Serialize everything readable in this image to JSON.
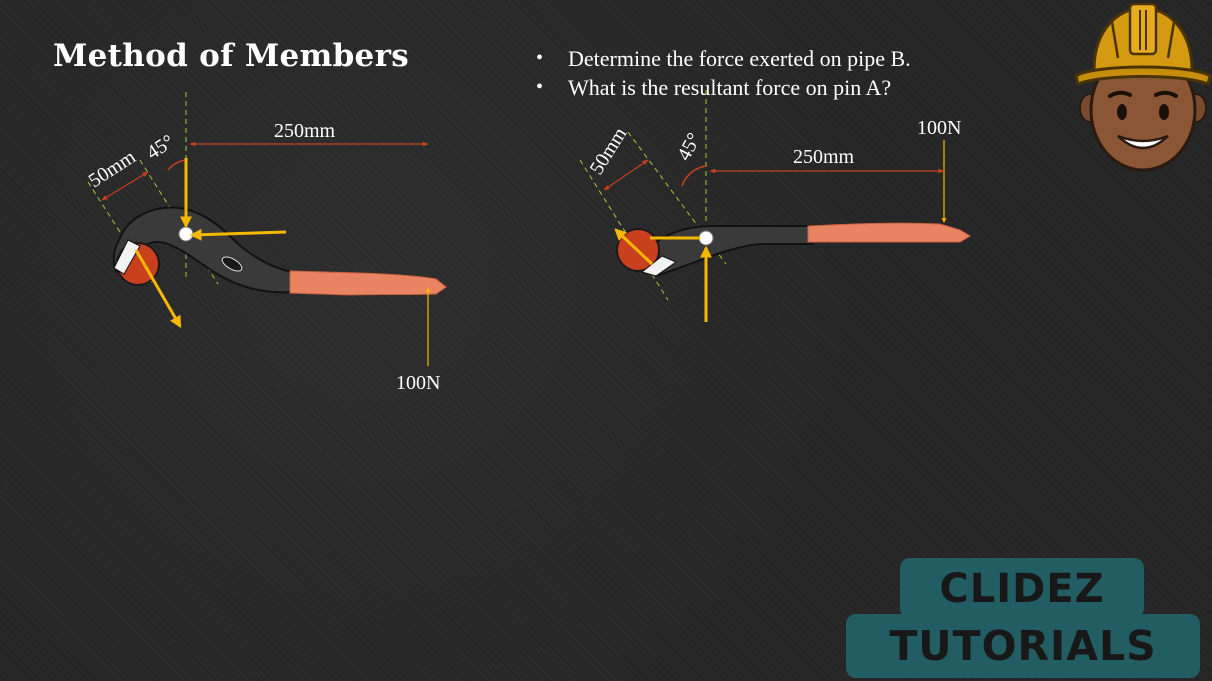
{
  "slide": {
    "title": "Method of Members",
    "bullets": [
      "Determine the force exerted on pipe B.",
      "What is the resultant force on pin A?"
    ]
  },
  "diagram_left": {
    "dim_horizontal": "250mm",
    "dim_jaw": "50mm",
    "angle": "45°",
    "force": "100N"
  },
  "diagram_right": {
    "dim_horizontal": "250mm",
    "dim_jaw": "50mm",
    "angle": "45°",
    "force": "100N"
  },
  "logo": {
    "line1": "CLIDEZ",
    "line2": "TUTORIALS"
  },
  "colors": {
    "background": "#262626",
    "handle": "#e88461",
    "pipe": "#c8401e",
    "force_arrow": "#f5b800",
    "dimension": "#c8401e",
    "guide_line": "#9ccc3c",
    "logo_box": "#235d64"
  },
  "icons": [
    "hard-hat-avatar-icon",
    "pipe-wrench-icon"
  ]
}
